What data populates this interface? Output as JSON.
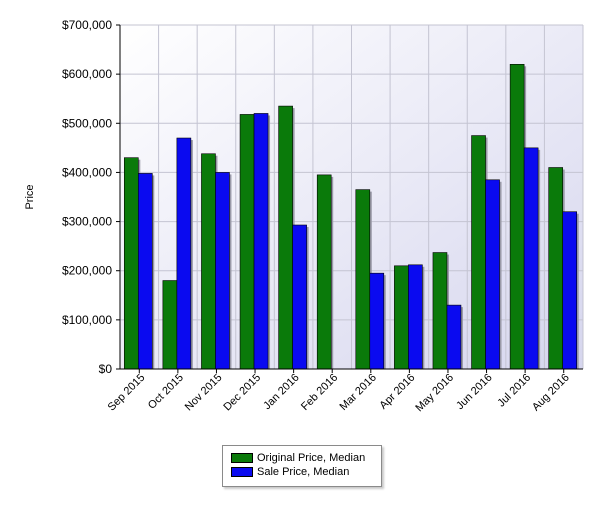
{
  "chart_data": {
    "type": "bar",
    "ylabel": "Price",
    "xlabel": "",
    "title": "",
    "ylim": [
      0,
      700000
    ],
    "y_ticks": [
      0,
      100000,
      200000,
      300000,
      400000,
      500000,
      600000,
      700000
    ],
    "y_tick_labels": [
      "$0",
      "$100,000",
      "$200,000",
      "$300,000",
      "$400,000",
      "$500,000",
      "$600,000",
      "$700,000"
    ],
    "categories": [
      "Sep 2015",
      "Oct 2015",
      "Nov 2015",
      "Dec 2015",
      "Jan 2016",
      "Feb 2016",
      "Mar 2016",
      "Apr 2016",
      "May 2016",
      "Jun 2016",
      "Jul 2016",
      "Aug 2016"
    ],
    "series": [
      {
        "name": "Original Price, Median",
        "color": "#0a7a0a",
        "values": [
          430000,
          180000,
          438000,
          518000,
          535000,
          395000,
          365000,
          210000,
          237000,
          475000,
          620000,
          410000
        ]
      },
      {
        "name": "Sale Price, Median",
        "color": "#0a0af0",
        "values": [
          398000,
          470000,
          400000,
          520000,
          293000,
          null,
          195000,
          212000,
          130000,
          385000,
          450000,
          320000
        ]
      }
    ],
    "grid": true,
    "legend_position": "bottom-center",
    "plot_background": "#e8e8f6"
  }
}
